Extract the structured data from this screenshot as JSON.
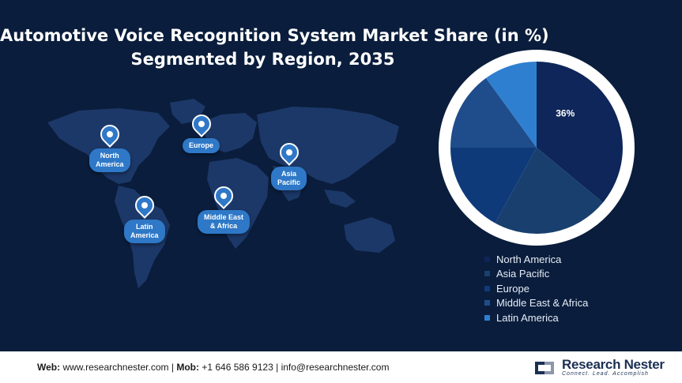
{
  "title_line1": "Automotive Voice Recognition System Market Share (in %)",
  "title_line2": "Segmented by Region, 2035",
  "map_regions": [
    {
      "label": "North\nAmerica"
    },
    {
      "label": "Europe"
    },
    {
      "label": "Asia\nPacific"
    },
    {
      "label": "Latin\nAmerica"
    },
    {
      "label": "Middle East\n& Africa"
    }
  ],
  "chart_data": {
    "type": "pie",
    "title": "Automotive Voice Recognition System Market Share (in %) Segmented by Region, 2035",
    "categories": [
      "North America",
      "Asia Pacific",
      "Europe",
      "Middle East & Africa",
      "Latin America"
    ],
    "values": [
      36,
      22,
      17,
      15,
      10
    ],
    "data_labels": [
      "36%",
      "",
      "",
      "",
      ""
    ],
    "colors": [
      "#0e2659",
      "#183f6e",
      "#0f3a7a",
      "#1f4d8c",
      "#2f7fd0"
    ],
    "legend_position": "bottom-right"
  },
  "footer": {
    "web_label": "Web:",
    "web": "www.researchnester.com",
    "mob_label": "Mob:",
    "mob": "+1 646 586 9123",
    "email": "info@researchnester.com",
    "sep": "|"
  },
  "logo": {
    "name": "Research Nester",
    "tagline": "Connect. Lead. Accomplish"
  }
}
